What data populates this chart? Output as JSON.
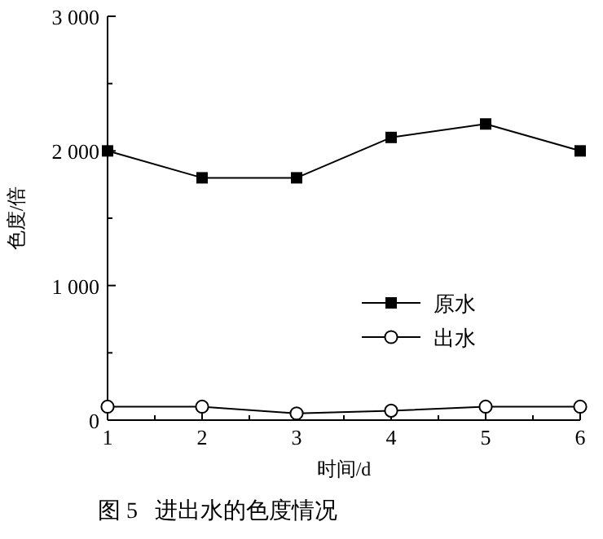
{
  "chart_data": {
    "type": "line",
    "xlabel": "时间/d",
    "ylabel": "色度/倍",
    "x": [
      1,
      2,
      3,
      4,
      5,
      6
    ],
    "series": [
      {
        "name": "原水",
        "color": "#000000",
        "marker": "square",
        "values": [
          2000,
          1800,
          1800,
          2100,
          2200,
          2000
        ]
      },
      {
        "name": "出水",
        "color": "#000000",
        "marker": "circle",
        "values": [
          100,
          100,
          50,
          70,
          100,
          100
        ]
      }
    ],
    "xlim": [
      1,
      6
    ],
    "xticks": [
      1,
      {
        "value": 1.5,
        "label": null
      },
      2,
      {
        "value": 2.5,
        "label": null
      },
      3,
      {
        "value": 3.5,
        "label": null
      },
      4,
      {
        "value": 4.5,
        "label": null
      },
      5,
      {
        "value": 5.5,
        "label": null
      },
      6
    ],
    "ylim": [
      0,
      3000
    ],
    "yticks": [
      0,
      {
        "value": 500,
        "label": null
      },
      {
        "value": 1000,
        "label": "1 000"
      },
      {
        "value": 1500,
        "label": null
      },
      {
        "value": 2000,
        "label": "2 000"
      },
      {
        "value": 2500,
        "label": null
      },
      {
        "value": 3000,
        "label": "3 000"
      }
    ],
    "legend": "right",
    "line_style": "solid",
    "grid": false,
    "annotations": [
      "图 5   进出水的色度情况"
    ]
  }
}
